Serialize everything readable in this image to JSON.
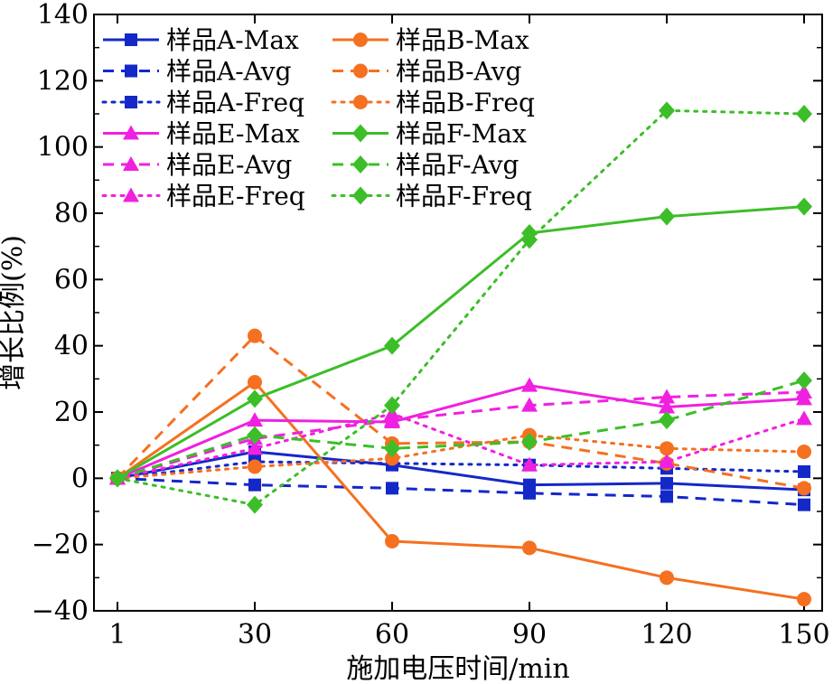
{
  "chart_data": {
    "type": "line",
    "xlabel": "施加电压时间/min",
    "ylabel": "增长比例(%)",
    "x": [
      1,
      30,
      60,
      90,
      120,
      150
    ],
    "x_tick_labels": [
      "1",
      "30",
      "60",
      "90",
      "120",
      "150"
    ],
    "ylim": [
      -40,
      140
    ],
    "y_ticks": [
      -40,
      -20,
      0,
      20,
      40,
      60,
      80,
      100,
      120,
      140
    ],
    "y_tick_labels": [
      "−40",
      "−20",
      "0",
      "20",
      "40",
      "60",
      "80",
      "100",
      "120",
      "140"
    ],
    "grid": false,
    "legend_placement": "top-left",
    "series": [
      {
        "name": "样品A-Max",
        "color": "#1428c8",
        "dash": "solid",
        "marker": "square",
        "values": [
          0,
          8,
          4,
          -2,
          -1.5,
          -3.5
        ]
      },
      {
        "name": "样品A-Avg",
        "color": "#1428c8",
        "dash": "dashed",
        "marker": "square",
        "values": [
          0,
          -2,
          -3,
          -4.5,
          -5.5,
          -8
        ]
      },
      {
        "name": "样品A-Freq",
        "color": "#1428c8",
        "dash": "dotted",
        "marker": "square",
        "values": [
          0,
          5,
          4.5,
          4,
          3,
          2
        ]
      },
      {
        "name": "样品B-Max",
        "color": "#f57020",
        "dash": "solid",
        "marker": "circle",
        "values": [
          0,
          29,
          -19,
          -21,
          -30,
          -36.5
        ]
      },
      {
        "name": "样品B-Avg",
        "color": "#f57020",
        "dash": "dashed",
        "marker": "circle",
        "values": [
          0,
          43,
          10.5,
          11,
          4.5,
          -3
        ]
      },
      {
        "name": "样品B-Freq",
        "color": "#f57020",
        "dash": "dotted",
        "marker": "circle",
        "values": [
          0,
          3.5,
          6,
          13,
          9,
          8
        ]
      },
      {
        "name": "样品E-Max",
        "color": "#f020e0",
        "dash": "solid",
        "marker": "triangle",
        "values": [
          0,
          17.5,
          17,
          28,
          21.5,
          24
        ]
      },
      {
        "name": "样品E-Avg",
        "color": "#f020e0",
        "dash": "dashed",
        "marker": "triangle",
        "values": [
          0,
          12,
          17.5,
          22,
          24.5,
          26
        ]
      },
      {
        "name": "样品E-Freq",
        "color": "#f020e0",
        "dash": "dotted",
        "marker": "triangle",
        "values": [
          0,
          9,
          19.5,
          4,
          5,
          18
        ]
      },
      {
        "name": "样品F-Max",
        "color": "#3cbe28",
        "dash": "solid",
        "marker": "diamond",
        "values": [
          0,
          24,
          40,
          74,
          79,
          82
        ]
      },
      {
        "name": "样品F-Avg",
        "color": "#3cbe28",
        "dash": "dashed",
        "marker": "diamond",
        "values": [
          0,
          13,
          9,
          11,
          17.5,
          29.5
        ]
      },
      {
        "name": "样品F-Freq",
        "color": "#3cbe28",
        "dash": "dotted",
        "marker": "diamond",
        "values": [
          0,
          -8,
          22,
          72,
          111,
          110
        ]
      }
    ]
  }
}
